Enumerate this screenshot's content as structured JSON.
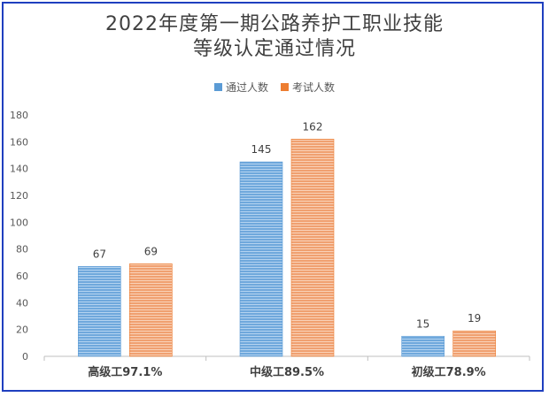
{
  "chart_data": {
    "type": "bar",
    "title_lines": [
      "2022年度第一期公路养护工职业技能",
      "等级认定通过情况"
    ],
    "categories": [
      "高级工97.1%",
      "中级工89.5%",
      "初级工78.9%"
    ],
    "series": [
      {
        "name": "通过人数",
        "values": [
          67,
          145,
          15
        ],
        "color": "#5b9bd5"
      },
      {
        "name": "考试人数",
        "values": [
          69,
          162,
          19
        ],
        "color": "#ed7d31"
      }
    ],
    "ylim": [
      0,
      180
    ],
    "yticks": [
      0,
      20,
      40,
      60,
      80,
      100,
      120,
      140,
      160,
      180
    ],
    "legend_position": "top",
    "grid": false
  }
}
